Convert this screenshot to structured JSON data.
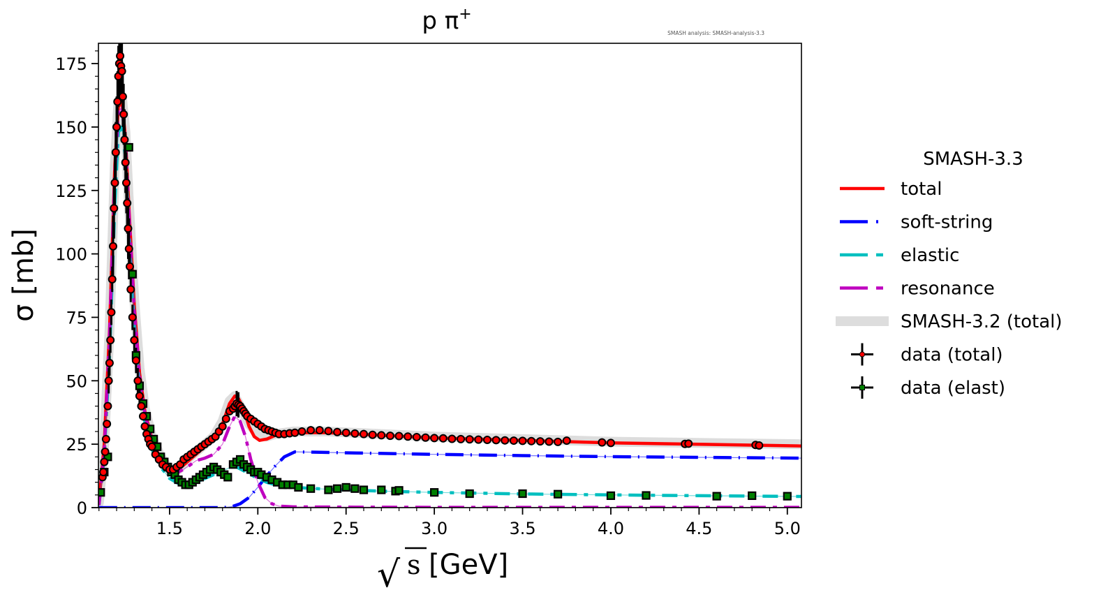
{
  "chart_data": {
    "type": "line",
    "title": "p π",
    "title_superscript": "+",
    "watermark": "SMASH analysis: SMASH-analysis-3.3",
    "xlabel_root": "√",
    "xlabel_var": "s",
    "xlabel_unit": "[GeV]",
    "ylabel": "σ [mb]",
    "xlim": [
      1.097,
      5.08
    ],
    "ylim": [
      0,
      183
    ],
    "xticks": [
      1.5,
      2.0,
      2.5,
      3.0,
      3.5,
      4.0,
      4.5,
      5.0
    ],
    "xtick_labels": [
      "1.5",
      "2.0",
      "2.5",
      "3.0",
      "3.5",
      "4.0",
      "4.5",
      "5.0"
    ],
    "yticks": [
      0,
      25,
      50,
      75,
      100,
      125,
      150,
      175
    ],
    "ytick_labels": [
      "0",
      "25",
      "50",
      "75",
      "100",
      "125",
      "150",
      "175"
    ],
    "legend": {
      "title": "SMASH-3.3",
      "placement": "outside-right",
      "entries": [
        {
          "label": "total",
          "color": "#ff0000",
          "style": "solid"
        },
        {
          "label": "soft-string",
          "color": "#0000ff",
          "style": "dashdot"
        },
        {
          "label": "elastic",
          "color": "#00bfbf",
          "style": "dashdot"
        },
        {
          "label": "resonance",
          "color": "#bf00bf",
          "style": "dashdot"
        },
        {
          "label": "SMASH-3.2 (total)",
          "color": "#dddddd",
          "style": "band"
        },
        {
          "label": "data (total)",
          "color": "#ff0000",
          "style": "errorbar-circle"
        },
        {
          "label": "data (elast)",
          "color": "#007f00",
          "style": "errorbar-square"
        }
      ]
    },
    "series": [
      {
        "name": "SMASH-3.2 (total)",
        "color": "#dddddd",
        "x": [
          1.1,
          1.13,
          1.16,
          1.19,
          1.21,
          1.23,
          1.25,
          1.27,
          1.3,
          1.33,
          1.36,
          1.4,
          1.45,
          1.5,
          1.55,
          1.6,
          1.65,
          1.7,
          1.75,
          1.8,
          1.84,
          1.87,
          1.9,
          1.95,
          2.0,
          2.05,
          2.1,
          2.2,
          2.4,
          2.7,
          3.0,
          3.5,
          4.0,
          4.5,
          5.08
        ],
        "y": [
          2,
          25,
          70,
          135,
          160,
          162,
          148,
          120,
          82,
          55,
          39,
          28,
          20,
          15,
          15,
          19,
          22,
          25,
          28,
          34,
          42,
          44,
          40,
          33,
          29,
          28,
          29,
          30,
          30,
          29,
          28,
          27,
          26,
          25.5,
          25
        ]
      },
      {
        "name": "total",
        "color": "#ff0000",
        "x": [
          1.1,
          1.13,
          1.16,
          1.19,
          1.21,
          1.23,
          1.25,
          1.27,
          1.3,
          1.33,
          1.36,
          1.4,
          1.45,
          1.5,
          1.55,
          1.6,
          1.65,
          1.7,
          1.75,
          1.8,
          1.84,
          1.87,
          1.89,
          1.92,
          1.95,
          1.98,
          2.01,
          2.05,
          2.1,
          2.2,
          2.4,
          2.7,
          3.0,
          3.5,
          4.0,
          4.5,
          5.08
        ],
        "y": [
          2,
          25,
          70,
          135,
          158,
          160,
          146,
          118,
          80,
          53,
          38,
          27,
          19,
          15,
          15,
          18,
          21,
          24,
          27,
          33,
          41,
          44,
          43,
          39,
          32,
          28,
          26.5,
          27,
          28.5,
          29.5,
          29.5,
          28.5,
          27.5,
          26.5,
          25.5,
          25,
          24.3
        ]
      },
      {
        "name": "soft-string",
        "color": "#0000ff",
        "x": [
          1.1,
          1.8,
          1.85,
          1.9,
          1.95,
          2.0,
          2.05,
          2.1,
          2.15,
          2.21,
          2.5,
          3.0,
          3.5,
          4.0,
          4.5,
          5.08
        ],
        "y": [
          0,
          0,
          0.3,
          1.5,
          4,
          8,
          12.5,
          16.5,
          20,
          22,
          21.6,
          21,
          20.5,
          20.1,
          19.8,
          19.5
        ]
      },
      {
        "name": "elastic",
        "color": "#00bfbf",
        "x": [
          1.1,
          1.13,
          1.16,
          1.19,
          1.21,
          1.23,
          1.25,
          1.27,
          1.3,
          1.33,
          1.36,
          1.4,
          1.45,
          1.5,
          1.55,
          1.6,
          1.65,
          1.7,
          1.75,
          1.8,
          1.85,
          1.88,
          1.92,
          1.96,
          2.0,
          2.05,
          2.1,
          2.2,
          2.4,
          2.7,
          3.0,
          3.5,
          4.0,
          4.5,
          5.08
        ],
        "y": [
          1,
          20,
          60,
          120,
          148,
          150,
          138,
          110,
          74,
          48,
          34,
          23,
          16,
          11.5,
          9.5,
          9,
          10,
          11.5,
          13,
          14.5,
          16,
          16,
          14.5,
          13,
          11.5,
          10,
          9,
          8,
          7.2,
          6.5,
          6,
          5.4,
          5,
          4.7,
          4.4
        ]
      },
      {
        "name": "resonance",
        "color": "#bf00bf",
        "x": [
          1.1,
          1.13,
          1.16,
          1.19,
          1.21,
          1.23,
          1.25,
          1.27,
          1.3,
          1.33,
          1.36,
          1.4,
          1.45,
          1.5,
          1.55,
          1.6,
          1.65,
          1.7,
          1.75,
          1.8,
          1.84,
          1.87,
          1.9,
          1.93,
          1.96,
          2.0,
          2.04,
          2.08,
          2.12,
          2.2,
          2.5,
          3.0,
          4.0,
          5.08
        ],
        "y": [
          1,
          22,
          68,
          132,
          156,
          158,
          144,
          116,
          78,
          52,
          37,
          26,
          18,
          14,
          14,
          16,
          18.5,
          19.5,
          21,
          25,
          32,
          36,
          34,
          28,
          19,
          10,
          4,
          1.5,
          0.6,
          0.3,
          0.2,
          0.1,
          0.1,
          0.1
        ]
      }
    ],
    "data_total": {
      "name": "data (total)",
      "color": "#ff0000",
      "x": [
        1.12,
        1.125,
        1.13,
        1.135,
        1.14,
        1.145,
        1.15,
        1.155,
        1.16,
        1.165,
        1.17,
        1.175,
        1.18,
        1.185,
        1.19,
        1.195,
        1.2,
        1.205,
        1.21,
        1.215,
        1.22,
        1.225,
        1.23,
        1.235,
        1.24,
        1.245,
        1.25,
        1.255,
        1.26,
        1.265,
        1.27,
        1.275,
        1.28,
        1.29,
        1.3,
        1.31,
        1.32,
        1.33,
        1.34,
        1.35,
        1.36,
        1.37,
        1.38,
        1.39,
        1.4,
        1.42,
        1.44,
        1.46,
        1.48,
        1.5,
        1.52,
        1.54,
        1.56,
        1.58,
        1.6,
        1.62,
        1.64,
        1.66,
        1.68,
        1.7,
        1.72,
        1.74,
        1.76,
        1.78,
        1.8,
        1.82,
        1.84,
        1.86,
        1.87,
        1.88,
        1.89,
        1.9,
        1.91,
        1.92,
        1.93,
        1.94,
        1.96,
        1.98,
        2.0,
        2.02,
        2.04,
        2.06,
        2.08,
        2.1,
        2.12,
        2.15,
        2.18,
        2.21,
        2.25,
        2.3,
        2.35,
        2.4,
        2.45,
        2.5,
        2.55,
        2.6,
        2.65,
        2.7,
        2.75,
        2.8,
        2.85,
        2.9,
        2.95,
        3.0,
        3.05,
        3.1,
        3.15,
        3.2,
        3.25,
        3.3,
        3.35,
        3.4,
        3.45,
        3.5,
        3.55,
        3.6,
        3.65,
        3.7,
        3.75,
        3.95,
        4.0,
        4.42,
        4.44,
        4.82,
        4.84
      ],
      "y": [
        12,
        14,
        18,
        22,
        27,
        33,
        40,
        50,
        57,
        66,
        77,
        90,
        103,
        118,
        128,
        140,
        150,
        160,
        170,
        175,
        178,
        174,
        172,
        162,
        155,
        145,
        136,
        128,
        120,
        110,
        102,
        95,
        86,
        75,
        66,
        58,
        50,
        44,
        40,
        36,
        32,
        29,
        27,
        25,
        24,
        21,
        19,
        17,
        16,
        15,
        15,
        16,
        17,
        19,
        20,
        21,
        22,
        23,
        24,
        25,
        26,
        27,
        28,
        30,
        32,
        35,
        38,
        39,
        40,
        41,
        40.5,
        40,
        39,
        38,
        37,
        36,
        35,
        34,
        33,
        32,
        31,
        30.5,
        30,
        29.5,
        29,
        29,
        29.3,
        29.5,
        30,
        30.5,
        30.5,
        30.2,
        29.8,
        29.5,
        29.2,
        29,
        28.7,
        28.5,
        28.3,
        28.2,
        28,
        27.8,
        27.6,
        27.4,
        27.3,
        27.1,
        27,
        26.9,
        26.8,
        26.7,
        26.6,
        26.5,
        26.4,
        26.3,
        26.2,
        26.1,
        26,
        25.9,
        26.4,
        25.7,
        25.5,
        25.1,
        25.2,
        24.7,
        24.5
      ]
    },
    "data_elastic": {
      "name": "data (elast)",
      "color": "#007f00",
      "x": [
        1.11,
        1.13,
        1.15,
        1.27,
        1.29,
        1.31,
        1.33,
        1.35,
        1.37,
        1.39,
        1.41,
        1.43,
        1.45,
        1.47,
        1.49,
        1.51,
        1.53,
        1.55,
        1.57,
        1.59,
        1.61,
        1.63,
        1.65,
        1.67,
        1.69,
        1.71,
        1.73,
        1.75,
        1.77,
        1.79,
        1.81,
        1.83,
        1.86,
        1.88,
        1.9,
        1.92,
        1.94,
        1.96,
        1.98,
        2.0,
        2.02,
        2.05,
        2.08,
        2.11,
        2.14,
        2.17,
        2.2,
        2.23,
        2.3,
        2.4,
        2.45,
        2.5,
        2.55,
        2.6,
        2.7,
        2.78,
        2.8,
        3.0,
        3.2,
        3.5,
        3.7,
        4.0,
        4.2,
        4.6,
        4.8,
        5.0
      ],
      "y": [
        6,
        14,
        20,
        142,
        92,
        60,
        48,
        41,
        36,
        31,
        27,
        24,
        20,
        18,
        16,
        14,
        13,
        11,
        10,
        9,
        9,
        10,
        11,
        12,
        13,
        14,
        15,
        16,
        15,
        14,
        13,
        12,
        17,
        18,
        19,
        17,
        16,
        15,
        14,
        14,
        13,
        12,
        11,
        10,
        9,
        9,
        9,
        8,
        7.5,
        7,
        7.5,
        8,
        7.5,
        7,
        7,
        6.5,
        6.8,
        6,
        5.5,
        5.5,
        5.3,
        4.7,
        4.8,
        4.5,
        4.7,
        4.5
      ]
    }
  }
}
